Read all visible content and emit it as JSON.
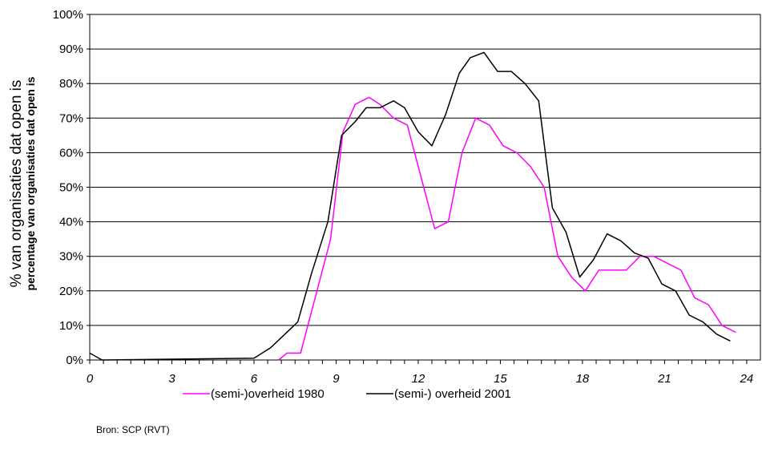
{
  "chart_data": {
    "type": "line",
    "ylabel": "% van organisaties dat open is",
    "ylabel_secondary": "percentage van organisaties dat open is",
    "y_ticks": [
      "0%",
      "10%",
      "20%",
      "30%",
      "40%",
      "50%",
      "60%",
      "70%",
      "80%",
      "90%",
      "100%"
    ],
    "x_ticks": [
      "0",
      "3",
      "6",
      "9",
      "12",
      "15",
      "18",
      "21",
      "24"
    ],
    "ylim": [
      0,
      100
    ],
    "xlim": [
      0,
      24.5
    ],
    "grid": "horizontal",
    "legend_position": "bottom",
    "series": [
      {
        "name": "(semi-)overheid 1980",
        "color": "#ff00ff",
        "points": [
          [
            6.9,
            0
          ],
          [
            7.2,
            2
          ],
          [
            7.7,
            2
          ],
          [
            8.3,
            20
          ],
          [
            8.8,
            35
          ],
          [
            9.25,
            66
          ],
          [
            9.7,
            74
          ],
          [
            10.2,
            76
          ],
          [
            10.6,
            74
          ],
          [
            11.1,
            70
          ],
          [
            11.6,
            68
          ],
          [
            12.2,
            50
          ],
          [
            12.6,
            38
          ],
          [
            13.1,
            40
          ],
          [
            13.6,
            60
          ],
          [
            14.1,
            70
          ],
          [
            14.6,
            68
          ],
          [
            15.1,
            62
          ],
          [
            15.6,
            60
          ],
          [
            16.1,
            56
          ],
          [
            16.6,
            50
          ],
          [
            17.1,
            30
          ],
          [
            17.6,
            24
          ],
          [
            18.1,
            20
          ],
          [
            18.6,
            26
          ],
          [
            19.1,
            26
          ],
          [
            19.6,
            26
          ],
          [
            20.1,
            30
          ],
          [
            20.6,
            30
          ],
          [
            21.1,
            28
          ],
          [
            21.6,
            26
          ],
          [
            22.1,
            18
          ],
          [
            22.6,
            16
          ],
          [
            23.1,
            10
          ],
          [
            23.6,
            8
          ]
        ]
      },
      {
        "name": "(semi-) overheid 2001",
        "color": "#000000",
        "points": [
          [
            0,
            2
          ],
          [
            0.45,
            0
          ],
          [
            6.0,
            0.5
          ],
          [
            6.6,
            3.5
          ],
          [
            7.6,
            11
          ],
          [
            8.1,
            25
          ],
          [
            8.7,
            40
          ],
          [
            9.2,
            65
          ],
          [
            9.7,
            69
          ],
          [
            10.1,
            73
          ],
          [
            10.6,
            73
          ],
          [
            11.1,
            75
          ],
          [
            11.5,
            73
          ],
          [
            12.0,
            66
          ],
          [
            12.5,
            62
          ],
          [
            13.0,
            71
          ],
          [
            13.5,
            83
          ],
          [
            13.9,
            87.5
          ],
          [
            14.4,
            89
          ],
          [
            14.9,
            83.5
          ],
          [
            15.4,
            83.5
          ],
          [
            15.9,
            80
          ],
          [
            16.4,
            75
          ],
          [
            16.9,
            44
          ],
          [
            17.4,
            37
          ],
          [
            17.9,
            24
          ],
          [
            18.4,
            29
          ],
          [
            18.9,
            36.5
          ],
          [
            19.4,
            34.5
          ],
          [
            19.9,
            31
          ],
          [
            20.4,
            29.5
          ],
          [
            20.9,
            22
          ],
          [
            21.4,
            20
          ],
          [
            21.9,
            13
          ],
          [
            22.4,
            11
          ],
          [
            22.9,
            7.5
          ],
          [
            23.4,
            5.5
          ]
        ]
      }
    ]
  },
  "source": "Bron: SCP (RVT)"
}
